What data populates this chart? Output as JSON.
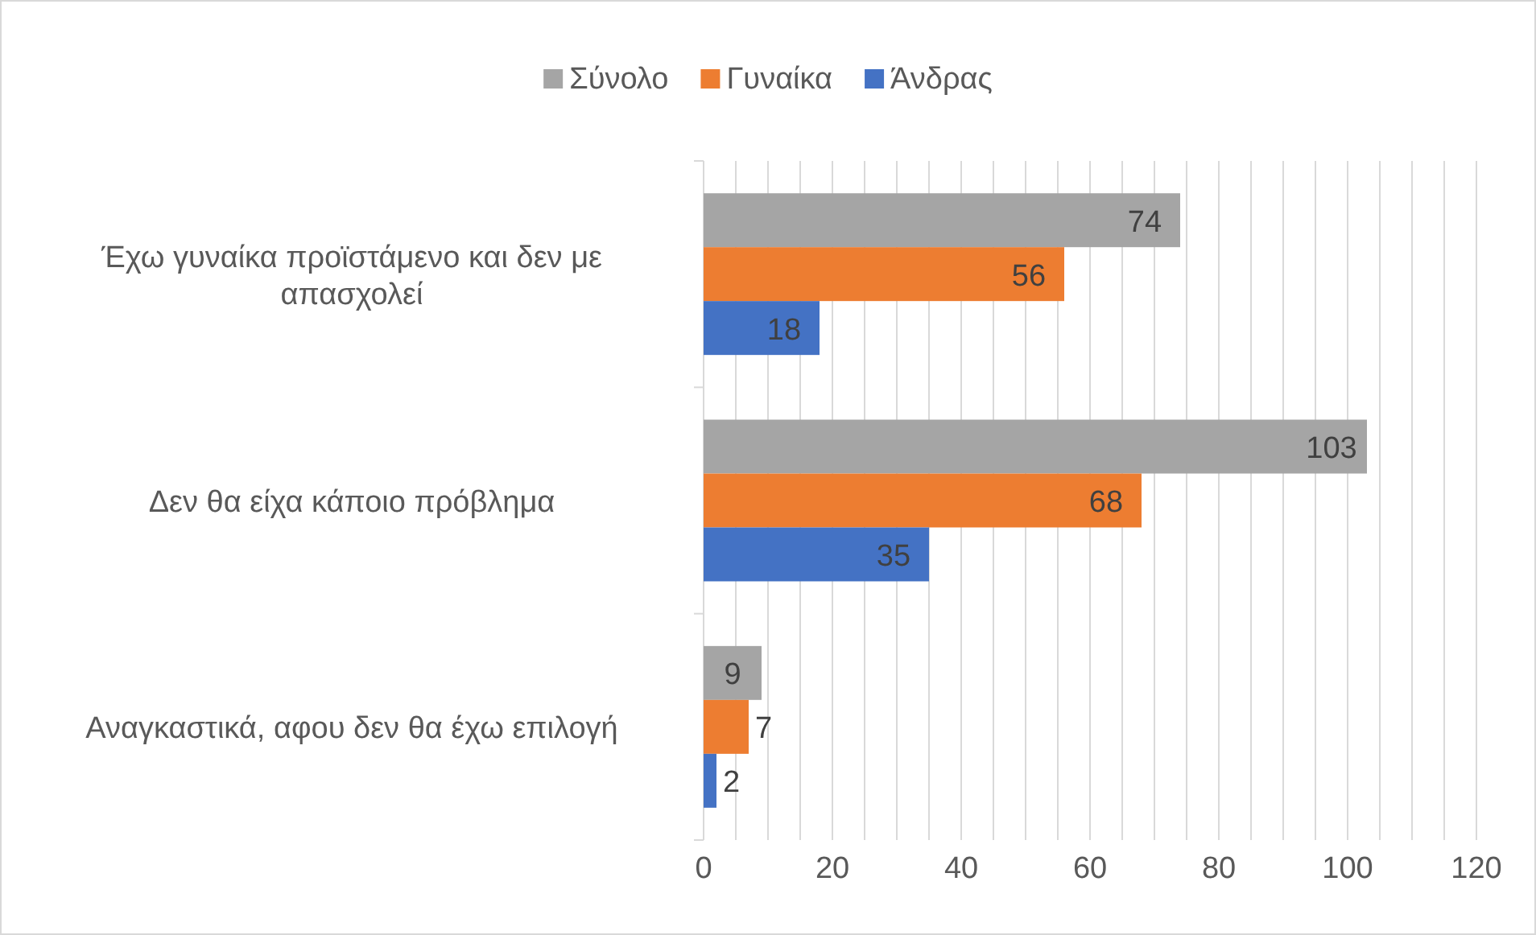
{
  "chart_data": {
    "type": "bar",
    "orientation": "horizontal",
    "categories": [
      "Έχω γυναίκα προϊστάμενο και δεν με απασχολεί",
      "Δεν θα είχα κάποιο πρόβλημα",
      "Αναγκαστικά, αφου δεν θα έχω επιλογή"
    ],
    "series": [
      {
        "name": "Σύνολο",
        "color": "#a5a5a5",
        "values": [
          74,
          103,
          9
        ]
      },
      {
        "name": "Γυναίκα",
        "color": "#ed7d31",
        "values": [
          56,
          68,
          7
        ]
      },
      {
        "name": "Άνδρας",
        "color": "#4472c4",
        "values": [
          18,
          35,
          2
        ]
      }
    ],
    "xlim": [
      0,
      120
    ],
    "xticks": [
      0,
      {
        "value": 5,
        "label": null
      },
      {
        "value": 10,
        "label": null
      },
      {
        "value": 15,
        "label": null
      },
      20,
      {
        "value": 25,
        "label": null
      },
      {
        "value": 30,
        "label": null
      },
      {
        "value": 35,
        "label": null
      },
      40,
      {
        "value": 45,
        "label": null
      },
      {
        "value": 50,
        "label": null
      },
      {
        "value": 55,
        "label": null
      },
      60,
      {
        "value": 65,
        "label": null
      },
      {
        "value": 70,
        "label": null
      },
      {
        "value": 75,
        "label": null
      },
      80,
      {
        "value": 85,
        "label": null
      },
      {
        "value": 90,
        "label": null
      },
      {
        "value": 95,
        "label": null
      },
      100,
      {
        "value": 105,
        "label": null
      },
      {
        "value": 110,
        "label": null
      },
      {
        "value": 115,
        "label": null
      },
      120
    ],
    "grid": "x",
    "legend": "top",
    "data_labels": true
  }
}
